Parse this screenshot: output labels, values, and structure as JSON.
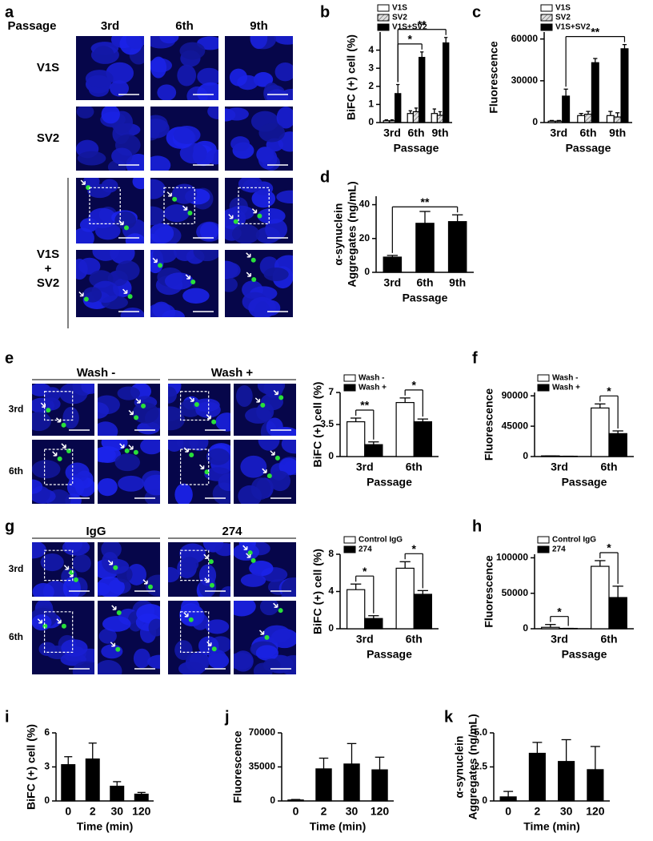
{
  "micrographs": [
    {
      "panel": "a",
      "header": "Passage",
      "columns": [
        "3rd",
        "6th",
        "9th"
      ],
      "rows": [
        "V1S",
        "SV2"
      ],
      "merged_row": [
        "V1S",
        "+",
        "SV2"
      ]
    },
    {
      "panel": "e",
      "columns": [
        "Wash -",
        "Wash +"
      ],
      "rows": [
        "3rd",
        "6th"
      ]
    },
    {
      "panel": "g",
      "columns": [
        "IgG",
        "274"
      ],
      "rows": [
        "3rd",
        "6th"
      ]
    }
  ],
  "chart_data": [
    {
      "type": "bar",
      "panel": "b",
      "y_label": [
        "BiFC (+) cell (%)"
      ],
      "x_label": "Passage",
      "categories": [
        "3rd",
        "6th",
        "9th"
      ],
      "series": [
        {
          "name": "V1S",
          "color": "#ffffff",
          "values": [
            0.1,
            0.5,
            0.5
          ],
          "errors": [
            0.05,
            0.15,
            0.25
          ]
        },
        {
          "name": "SV2",
          "color": "#d0d0d0",
          "hatch": true,
          "values": [
            0.1,
            0.6,
            0.4
          ],
          "errors": [
            0.05,
            0.2,
            0.2
          ]
        },
        {
          "name": "V1S+SV2",
          "color": "#000000",
          "values": [
            1.6,
            3.6,
            4.4
          ],
          "errors": [
            0.5,
            0.3,
            0.3
          ]
        }
      ],
      "ylim": [
        0,
        5
      ],
      "yticks": [
        0,
        1,
        2,
        3,
        4
      ],
      "annotations": [
        "*",
        "**"
      ]
    },
    {
      "type": "bar",
      "panel": "c",
      "y_label": [
        "Fluorescence"
      ],
      "x_label": "Passage",
      "categories": [
        "3rd",
        "6th",
        "9th"
      ],
      "series": [
        {
          "name": "V1S",
          "color": "#ffffff",
          "values": [
            1000,
            5000,
            5000
          ],
          "errors": [
            500,
            1500,
            3000
          ]
        },
        {
          "name": "SV2",
          "color": "#d0d0d0",
          "hatch": true,
          "values": [
            1000,
            6000,
            4000
          ],
          "errors": [
            500,
            2000,
            3000
          ]
        },
        {
          "name": "V1S+SV2",
          "color": "#000000",
          "values": [
            19000,
            43000,
            53000
          ],
          "errors": [
            5000,
            3000,
            3000
          ]
        }
      ],
      "ylim": [
        0,
        65000
      ],
      "yticks": [
        0,
        30000,
        60000
      ],
      "annotations": [
        "**"
      ]
    },
    {
      "type": "bar",
      "panel": "d",
      "y_label": [
        "α-synuclein",
        "Aggregates (ng/mL)"
      ],
      "x_label": "Passage",
      "categories": [
        "3rd",
        "6th",
        "9th"
      ],
      "series": [
        {
          "color": "#000000",
          "values": [
            9,
            29,
            30
          ],
          "errors": [
            1,
            7,
            4
          ]
        }
      ],
      "ylim": [
        0,
        45
      ],
      "yticks": [
        0,
        20,
        40
      ],
      "annotations": [
        "**"
      ]
    },
    {
      "type": "bar",
      "y_label": [
        "BiFC (+) cell (%)"
      ],
      "x_label": "Passage",
      "categories": [
        "3rd",
        "6th"
      ],
      "series": [
        {
          "name": "Wash -",
          "color": "#ffffff",
          "values": [
            3.8,
            5.9
          ],
          "errors": [
            0.4,
            0.5
          ]
        },
        {
          "name": "Wash +",
          "color": "#000000",
          "values": [
            1.3,
            3.8
          ],
          "errors": [
            0.3,
            0.3
          ]
        }
      ],
      "ylim": [
        0,
        7
      ],
      "yticks": [
        0,
        3.5,
        7
      ],
      "annotations": [
        "**",
        "*"
      ]
    },
    {
      "type": "bar",
      "panel": "f",
      "y_label": [
        "Fluorescence"
      ],
      "x_label": "Passage",
      "categories": [
        "3rd",
        "6th"
      ],
      "series": [
        {
          "name": "Wash -",
          "color": "#ffffff",
          "values": [
            1000,
            72000
          ],
          "errors": [
            0,
            6000
          ]
        },
        {
          "name": "Wash +",
          "color": "#000000",
          "values": [
            500,
            34000
          ],
          "errors": [
            0,
            4000
          ]
        }
      ],
      "ylim": [
        0,
        95000
      ],
      "yticks": [
        0,
        45000,
        90000
      ],
      "annotations": [
        "*"
      ]
    },
    {
      "type": "bar",
      "y_label": [
        "BiFC (+) cell (%)"
      ],
      "x_label": "Passage",
      "categories": [
        "3rd",
        "6th"
      ],
      "series": [
        {
          "name": "Control IgG",
          "color": "#ffffff",
          "values": [
            4.2,
            6.5
          ],
          "errors": [
            0.6,
            0.7
          ]
        },
        {
          "name": "274",
          "color": "#000000",
          "values": [
            1.1,
            3.7
          ],
          "errors": [
            0.3,
            0.4
          ]
        }
      ],
      "ylim": [
        0,
        8
      ],
      "yticks": [
        0,
        4,
        8
      ],
      "annotations": [
        "*",
        "*"
      ]
    },
    {
      "type": "bar",
      "panel": "h",
      "y_label": [
        "Fluorescence"
      ],
      "x_label": "Passage",
      "categories": [
        "3rd",
        "6th"
      ],
      "series": [
        {
          "name": "Control IgG",
          "color": "#ffffff",
          "values": [
            2000,
            88000
          ],
          "errors": [
            4000,
            8000
          ]
        },
        {
          "name": "274",
          "color": "#000000",
          "values": [
            500,
            44000
          ],
          "errors": [
            0,
            16000
          ]
        }
      ],
      "ylim": [
        0,
        105000
      ],
      "yticks": [
        0,
        50000,
        100000
      ],
      "annotations": [
        "*",
        "*"
      ]
    },
    {
      "type": "bar",
      "panel": "i",
      "y_label": [
        "BiFC (+) cell (%)"
      ],
      "x_label": "Time (min)",
      "categories": [
        "0",
        "2",
        "30",
        "120"
      ],
      "series": [
        {
          "color": "#000000",
          "values": [
            3.2,
            3.7,
            1.3,
            0.6
          ],
          "errors": [
            0.7,
            1.4,
            0.4,
            0.15
          ]
        }
      ],
      "ylim": [
        0,
        6
      ],
      "yticks": [
        0,
        3,
        6
      ]
    },
    {
      "type": "bar",
      "panel": "j",
      "y_label": [
        "Fluorescence"
      ],
      "x_label": "Time (min)",
      "categories": [
        "0",
        "2",
        "30",
        "120"
      ],
      "series": [
        {
          "color": "#000000",
          "values": [
            1000,
            33000,
            38000,
            32000
          ],
          "errors": [
            500,
            11000,
            21000,
            13000
          ]
        }
      ],
      "ylim": [
        0,
        70000
      ],
      "yticks": [
        0,
        35000,
        70000
      ]
    },
    {
      "type": "bar",
      "panel": "k",
      "y_label": [
        "α-synuclein",
        "Aggregates (ng/mL)"
      ],
      "x_label": "Time (min)",
      "categories": [
        "0",
        "2",
        "30",
        "120"
      ],
      "series": [
        {
          "color": "#000000",
          "values": [
            0.3,
            3.5,
            2.9,
            2.3
          ],
          "errors": [
            0.4,
            0.8,
            1.6,
            1.7
          ]
        }
      ],
      "ylim": [
        0,
        5
      ],
      "yticks": [
        0,
        2.5,
        {
          "value": 5,
          "label": "5.0"
        }
      ]
    }
  ]
}
